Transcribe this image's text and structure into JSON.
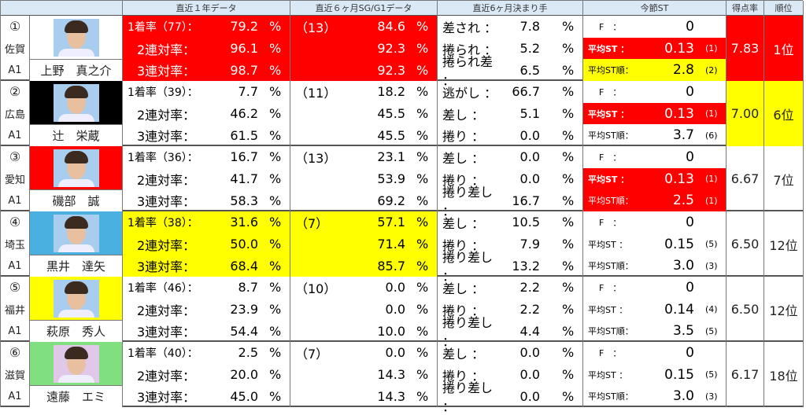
{
  "headers": [
    "",
    "直近１年データ",
    "直近６ヶ月SG/G1データ",
    "直近6ヶ月決まり手",
    "今節ST",
    "得点率",
    "順位"
  ],
  "colors": {
    "red": "#ff0000",
    "yellow": "#ffff00"
  },
  "racers": [
    {
      "num": "①",
      "pref": "佐賀",
      "cls": "A1",
      "name": "上野　真之介",
      "frame": "#ffffff",
      "y1": {
        "count": "（77）",
        "v": [
          "79.2",
          "96.1",
          "98.7"
        ],
        "hl": "red"
      },
      "sg": {
        "count": "（13）",
        "v": [
          "84.6",
          "92.3",
          "92.3"
        ],
        "hl": "red"
      },
      "km": [
        [
          "差され",
          "7.8"
        ],
        [
          "捲られ",
          "5.2"
        ],
        [
          "捲られ差",
          "6.5"
        ]
      ],
      "st": {
        "f": "0",
        "avg": "0.13",
        "avg_r": "(1)",
        "ord": "2.8",
        "ord_r": "(2)",
        "avg_hl": "red",
        "ord_hl": "yel"
      },
      "score": "7.83",
      "rank": "1位",
      "sr_hl": "red"
    },
    {
      "num": "②",
      "pref": "広島",
      "cls": "A1",
      "name": "辻　栄蔵",
      "frame": "#000000",
      "y1": {
        "count": "（39）",
        "v": [
          "7.7",
          "46.2",
          "61.5"
        ],
        "hl": ""
      },
      "sg": {
        "count": "（11）",
        "v": [
          "18.2",
          "45.5",
          "45.5"
        ],
        "hl": ""
      },
      "km": [
        [
          "逃がし",
          "66.7"
        ],
        [
          "差し",
          "5.1"
        ],
        [
          "捲り",
          "0.0"
        ]
      ],
      "st": {
        "f": "0",
        "avg": "0.13",
        "avg_r": "(1)",
        "ord": "3.7",
        "ord_r": "(6)",
        "avg_hl": "red",
        "ord_hl": ""
      },
      "score": "7.00",
      "rank": "6位",
      "sr_hl": "yel"
    },
    {
      "num": "③",
      "pref": "愛知",
      "cls": "A1",
      "name": "磯部　誠",
      "frame": "#ff0000",
      "y1": {
        "count": "（36）",
        "v": [
          "16.7",
          "41.7",
          "58.3"
        ],
        "hl": ""
      },
      "sg": {
        "count": "（13）",
        "v": [
          "23.1",
          "53.9",
          "69.2"
        ],
        "hl": ""
      },
      "km": [
        [
          "差し",
          "0.0"
        ],
        [
          "捲り",
          "0.0"
        ],
        [
          "捲り差し",
          "16.7"
        ]
      ],
      "st": {
        "f": "0",
        "avg": "0.13",
        "avg_r": "(1)",
        "ord": "2.5",
        "ord_r": "(1)",
        "avg_hl": "red",
        "ord_hl": "red"
      },
      "score": "6.67",
      "rank": "7位",
      "sr_hl": ""
    },
    {
      "num": "④",
      "pref": "埼玉",
      "cls": "A1",
      "name": "黒井　達矢",
      "frame": "#4ab0e0",
      "y1": {
        "count": "（38）",
        "v": [
          "31.6",
          "50.0",
          "68.4"
        ],
        "hl": "yel"
      },
      "sg": {
        "count": "（7）",
        "v": [
          "57.1",
          "71.4",
          "85.7"
        ],
        "hl": "yel"
      },
      "km": [
        [
          "差し",
          "10.5"
        ],
        [
          "捲り",
          "7.9"
        ],
        [
          "捲り差し",
          "13.2"
        ]
      ],
      "st": {
        "f": "0",
        "avg": "0.15",
        "avg_r": "(5)",
        "ord": "3.0",
        "ord_r": "(3)",
        "avg_hl": "",
        "ord_hl": ""
      },
      "score": "6.50",
      "rank": "12位",
      "sr_hl": ""
    },
    {
      "num": "⑤",
      "pref": "福井",
      "cls": "A1",
      "name": "萩原　秀人",
      "frame": "#ffff00",
      "y1": {
        "count": "（46）",
        "v": [
          "8.7",
          "23.9",
          "54.4"
        ],
        "hl": ""
      },
      "sg": {
        "count": "（10）",
        "v": [
          "0.0",
          "0.0",
          "10.0"
        ],
        "hl": ""
      },
      "km": [
        [
          "差し",
          "2.2"
        ],
        [
          "捲り",
          "2.2"
        ],
        [
          "捲り差し",
          "4.4"
        ]
      ],
      "st": {
        "f": "0",
        "avg": "0.14",
        "avg_r": "(4)",
        "ord": "3.5",
        "ord_r": "(5)",
        "avg_hl": "",
        "ord_hl": ""
      },
      "score": "6.50",
      "rank": "12位",
      "sr_hl": ""
    },
    {
      "num": "⑥",
      "pref": "滋賀",
      "cls": "A1",
      "name": "遠藤　エミ",
      "frame": "#80e080",
      "y1": {
        "count": "（40）",
        "v": [
          "2.5",
          "20.0",
          "45.0"
        ],
        "hl": ""
      },
      "sg": {
        "count": "（7）",
        "v": [
          "0.0",
          "14.3",
          "14.3"
        ],
        "hl": ""
      },
      "km": [
        [
          "差し",
          "0.0"
        ],
        [
          "捲り",
          "0.0"
        ],
        [
          "捲り差し",
          "0.0"
        ]
      ],
      "st": {
        "f": "0",
        "avg": "0.15",
        "avg_r": "(5)",
        "ord": "3.0",
        "ord_r": "(3)",
        "avg_hl": "",
        "ord_hl": ""
      },
      "score": "6.17",
      "rank": "18位",
      "sr_hl": ""
    }
  ],
  "labels": {
    "y1": [
      "1着率",
      "2連対率：",
      "3連対率："
    ],
    "colon": "：",
    "pct": "%",
    "f": "F　：",
    "avg": "平均ST ：",
    "ord": "平均ST順："
  }
}
